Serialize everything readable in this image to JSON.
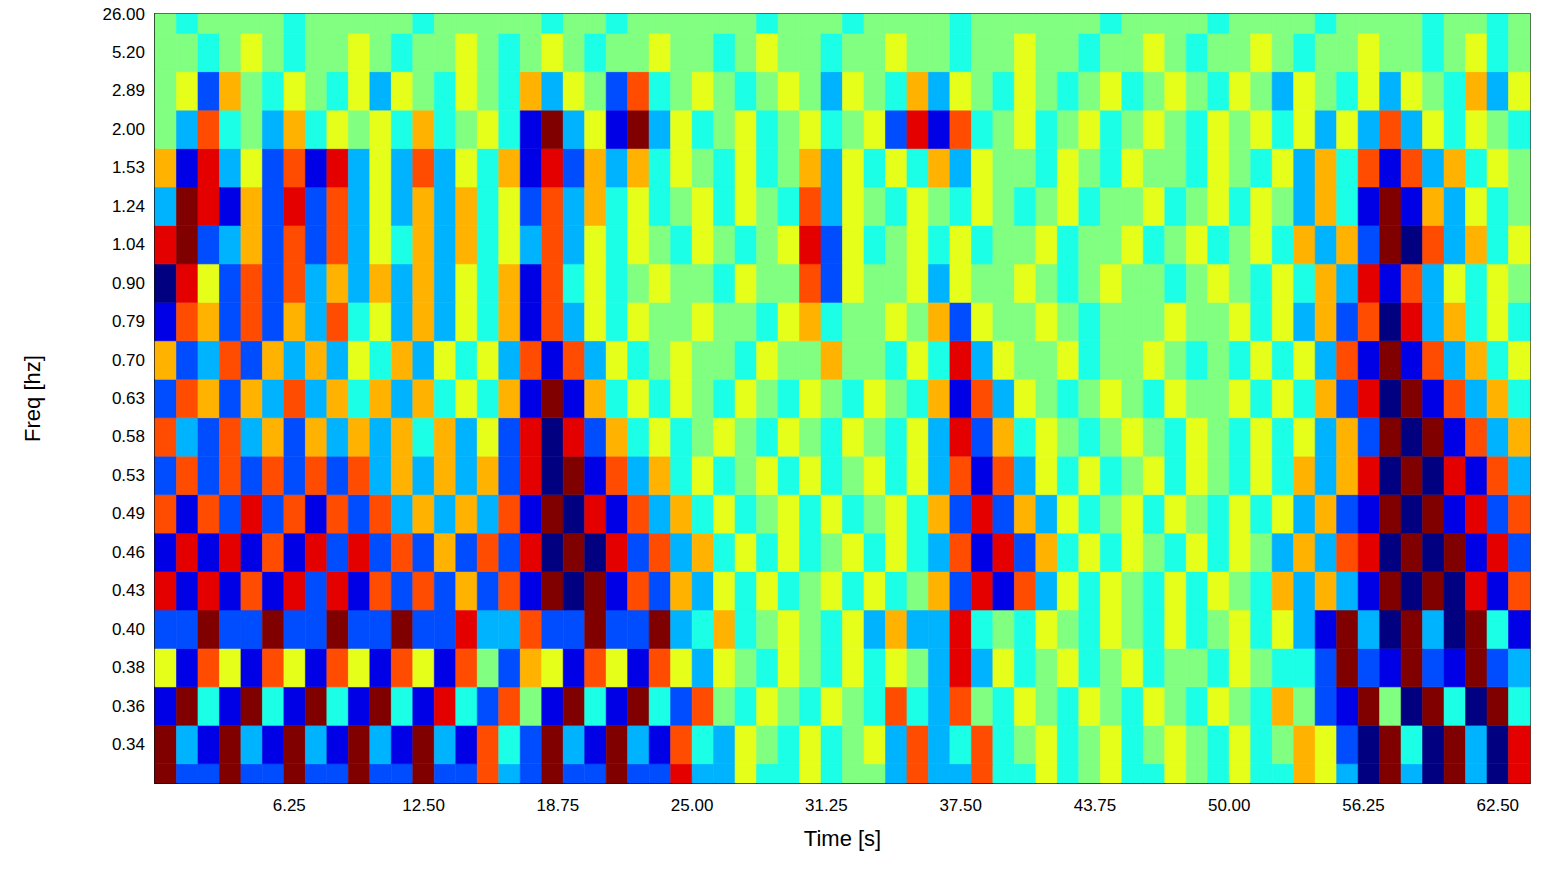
{
  "chart_data": {
    "type": "heatmap",
    "x_label": "Time [s]",
    "y_label": "Freq [hz]",
    "xlim": [
      0,
      64
    ],
    "xticks": [
      6.25,
      {
        "value": 12.5,
        "label": "12.50"
      },
      18.75,
      {
        "value": 25,
        "label": "25.00"
      },
      31.25,
      {
        "value": 37.5,
        "label": "37.50"
      },
      43.75,
      {
        "value": 50,
        "label": "50.00"
      },
      56.25,
      {
        "value": 62.5,
        "label": "62.50"
      }
    ],
    "grid": false,
    "x": [
      0.5,
      1.5,
      2.5,
      3.5,
      4.5,
      5.5,
      6.5,
      7.5,
      8.5,
      9.5,
      10.5,
      11.5,
      12.5,
      13.5,
      14.5,
      15.5,
      16.5,
      17.5,
      18.5,
      19.5,
      20.5,
      21.5,
      22.5,
      23.5,
      24.5,
      25.5,
      26.5,
      27.5,
      28.5,
      29.5,
      30.5,
      31.5,
      32.5,
      33.5,
      34.5,
      35.5,
      36.5,
      37.5,
      38.5,
      39.5,
      40.5,
      41.5,
      42.5,
      43.5,
      44.5,
      45.5,
      46.5,
      47.5,
      48.5,
      49.5,
      50.5,
      51.5,
      52.5,
      53.5,
      54.5,
      55.5,
      56.5,
      57.5,
      58.5,
      59.5,
      60.5,
      61.5,
      62.5,
      63.5
    ],
    "categories": [
      null,
      "0.34",
      "0.36",
      "0.38",
      "0.40",
      "0.43",
      "0.46",
      "0.49",
      "0.53",
      "0.58",
      "0.63",
      "0.70",
      "0.79",
      "0.90",
      "1.04",
      "1.24",
      "1.53",
      "2.00",
      "2.89",
      "5.20",
      "26.00"
    ],
    "color_range": [
      -5,
      5
    ],
    "cells": [
      [
        5,
        -3,
        -3,
        5,
        -3,
        -3,
        5,
        -3,
        -3,
        5,
        -3,
        -3,
        5,
        -3,
        -3,
        3,
        -2,
        -3,
        5,
        -3,
        -3,
        5,
        -3,
        -3,
        4,
        -2,
        -2,
        1,
        -1,
        -1,
        1,
        -1,
        0,
        0,
        -2,
        3,
        -2,
        -2,
        3,
        -1,
        -1,
        1,
        -1,
        0,
        1,
        -1,
        -1,
        1,
        0,
        -1,
        1,
        -1,
        -1,
        2,
        1,
        -2,
        -5,
        5,
        -2,
        -5,
        5,
        -2,
        -5,
        4
      ],
      [
        5,
        -2,
        -4,
        5,
        -2,
        -4,
        5,
        -2,
        -4,
        5,
        -2,
        -4,
        5,
        -2,
        -4,
        3,
        -1,
        -3,
        5,
        -2,
        -4,
        5,
        -2,
        -4,
        3,
        -1,
        -2,
        1,
        0,
        -1,
        1,
        -1,
        0,
        1,
        -2,
        3,
        -2,
        -1,
        3,
        -1,
        0,
        1,
        -1,
        0,
        1,
        -1,
        0,
        1,
        0,
        -1,
        1,
        -1,
        0,
        2,
        1,
        -3,
        -5,
        5,
        -1,
        -5,
        5,
        -2,
        -5,
        4
      ],
      [
        -4,
        5,
        -1,
        -4,
        5,
        -1,
        -4,
        5,
        -1,
        -4,
        5,
        -1,
        -4,
        4,
        -1,
        -3,
        3,
        0,
        -4,
        5,
        -1,
        -4,
        5,
        -1,
        -3,
        3,
        0,
        -1,
        1,
        0,
        -1,
        1,
        0,
        -1,
        3,
        -1,
        -2,
        3,
        0,
        -1,
        1,
        0,
        -1,
        1,
        0,
        -1,
        1,
        0,
        -1,
        1,
        0,
        -1,
        2,
        0,
        -3,
        -4,
        5,
        0,
        -5,
        5,
        -1,
        -5,
        5,
        -1
      ],
      [
        1,
        -4,
        3,
        1,
        -4,
        3,
        1,
        -4,
        3,
        1,
        -4,
        3,
        1,
        -4,
        3,
        0,
        -3,
        2,
        1,
        -4,
        3,
        1,
        -4,
        3,
        1,
        -2,
        1,
        0,
        -1,
        1,
        0,
        -1,
        1,
        -1,
        1,
        0,
        -2,
        4,
        -2,
        1,
        -1,
        0,
        1,
        -1,
        0,
        1,
        -1,
        0,
        0,
        -1,
        1,
        0,
        -1,
        -1,
        -3,
        5,
        -3,
        -4,
        5,
        -3,
        -4,
        5,
        -3,
        -2
      ],
      [
        -3,
        -3,
        5,
        -3,
        -3,
        5,
        -3,
        -3,
        5,
        -3,
        -3,
        5,
        -3,
        -3,
        4,
        -2,
        -2,
        3,
        -3,
        -3,
        5,
        -3,
        -3,
        5,
        -2,
        -1,
        2,
        -1,
        0,
        1,
        0,
        -1,
        1,
        -2,
        2,
        -2,
        -2,
        4,
        -1,
        0,
        -1,
        1,
        0,
        -1,
        1,
        0,
        -1,
        1,
        -1,
        0,
        1,
        -1,
        1,
        -2,
        -4,
        5,
        -2,
        -5,
        5,
        -2,
        -5,
        5,
        -1,
        -4
      ],
      [
        4,
        -4,
        4,
        -4,
        3,
        -4,
        4,
        -3,
        4,
        -4,
        3,
        -3,
        3,
        -3,
        2,
        -3,
        3,
        -4,
        5,
        -5,
        5,
        -4,
        3,
        -3,
        2,
        -2,
        1,
        -1,
        1,
        -1,
        0,
        1,
        -1,
        1,
        -1,
        0,
        2,
        -3,
        4,
        -4,
        3,
        -2,
        1,
        -1,
        1,
        0,
        -1,
        1,
        -1,
        1,
        0,
        -1,
        2,
        -2,
        2,
        -2,
        -4,
        5,
        -5,
        5,
        -5,
        4,
        -4,
        3
      ],
      [
        -4,
        4,
        -4,
        4,
        -4,
        3,
        -4,
        4,
        -3,
        4,
        -3,
        3,
        -3,
        2,
        -3,
        3,
        -3,
        4,
        -5,
        5,
        -5,
        4,
        -3,
        3,
        -2,
        2,
        -1,
        1,
        -1,
        1,
        -1,
        0,
        1,
        -1,
        1,
        -1,
        -2,
        3,
        -4,
        4,
        -3,
        2,
        -1,
        1,
        -1,
        1,
        0,
        -1,
        1,
        -1,
        1,
        0,
        -2,
        2,
        -2,
        3,
        4,
        -5,
        5,
        -5,
        5,
        -4,
        4,
        -3
      ],
      [
        3,
        -4,
        3,
        -3,
        4,
        -3,
        3,
        -4,
        3,
        -3,
        3,
        -2,
        2,
        -2,
        2,
        -2,
        3,
        -4,
        5,
        -5,
        4,
        -4,
        3,
        -2,
        2,
        -1,
        1,
        -1,
        0,
        1,
        -1,
        1,
        -1,
        0,
        1,
        -1,
        2,
        -3,
        4,
        -3,
        2,
        -2,
        1,
        -1,
        0,
        1,
        -1,
        1,
        0,
        -1,
        1,
        -1,
        1,
        -2,
        2,
        -3,
        -4,
        5,
        -5,
        5,
        -4,
        4,
        -3,
        3
      ],
      [
        -3,
        3,
        -3,
        3,
        -3,
        3,
        -3,
        3,
        -3,
        3,
        -2,
        2,
        -2,
        2,
        -2,
        2,
        -3,
        4,
        -5,
        5,
        -4,
        3,
        -2,
        2,
        -1,
        1,
        -1,
        0,
        1,
        -1,
        1,
        -1,
        0,
        1,
        -1,
        1,
        -2,
        3,
        -4,
        3,
        -2,
        1,
        -1,
        1,
        -1,
        0,
        1,
        -1,
        1,
        0,
        -1,
        1,
        -1,
        2,
        -2,
        2,
        4,
        -5,
        5,
        -5,
        4,
        -4,
        3,
        -2
      ],
      [
        3,
        -2,
        -3,
        3,
        -2,
        2,
        -3,
        2,
        -2,
        2,
        -2,
        2,
        -1,
        2,
        -2,
        1,
        -3,
        4,
        -5,
        4,
        -3,
        2,
        -1,
        1,
        -1,
        0,
        1,
        0,
        -1,
        1,
        0,
        -1,
        1,
        0,
        -1,
        1,
        -2,
        4,
        -3,
        2,
        -1,
        1,
        0,
        -1,
        0,
        1,
        0,
        -1,
        1,
        0,
        -1,
        1,
        -1,
        1,
        -2,
        2,
        -3,
        5,
        -5,
        5,
        -4,
        3,
        -2,
        2
      ],
      [
        -3,
        3,
        2,
        -3,
        2,
        -2,
        3,
        -2,
        2,
        -1,
        2,
        -2,
        2,
        -1,
        1,
        -1,
        2,
        -4,
        5,
        -4,
        2,
        -1,
        1,
        -1,
        1,
        0,
        -1,
        1,
        0,
        -1,
        1,
        0,
        -1,
        1,
        0,
        -1,
        2,
        -4,
        3,
        -2,
        1,
        0,
        -1,
        0,
        1,
        0,
        -1,
        1,
        0,
        0,
        1,
        -1,
        1,
        -1,
        2,
        -3,
        4,
        -5,
        5,
        -4,
        3,
        -2,
        2,
        -1
      ],
      [
        2,
        -3,
        -2,
        3,
        -3,
        2,
        -2,
        2,
        -2,
        1,
        -1,
        2,
        -2,
        1,
        -1,
        1,
        -2,
        3,
        -4,
        3,
        -2,
        1,
        -1,
        0,
        1,
        0,
        0,
        -1,
        1,
        0,
        0,
        2,
        0,
        0,
        -1,
        1,
        -1,
        4,
        -2,
        1,
        0,
        0,
        1,
        -1,
        0,
        0,
        1,
        0,
        -1,
        0,
        -1,
        1,
        -1,
        1,
        -2,
        3,
        -4,
        5,
        -4,
        3,
        -2,
        2,
        -1,
        1
      ],
      [
        -4,
        3,
        2,
        -3,
        3,
        -3,
        2,
        -2,
        3,
        -1,
        1,
        -2,
        2,
        -2,
        1,
        -1,
        2,
        -4,
        3,
        -2,
        1,
        -1,
        1,
        0,
        0,
        1,
        0,
        0,
        -1,
        1,
        2,
        -1,
        0,
        0,
        1,
        0,
        2,
        -3,
        1,
        0,
        0,
        1,
        0,
        -1,
        0,
        0,
        0,
        1,
        0,
        0,
        1,
        -1,
        1,
        -2,
        2,
        -3,
        3,
        -5,
        4,
        -2,
        2,
        -1,
        1,
        -1
      ],
      [
        -5,
        4,
        1,
        -3,
        3,
        -3,
        3,
        -2,
        2,
        -2,
        2,
        -2,
        2,
        -2,
        1,
        -1,
        2,
        -4,
        3,
        -1,
        1,
        -1,
        0,
        1,
        0,
        0,
        -1,
        1,
        0,
        0,
        3,
        -3,
        1,
        0,
        0,
        1,
        -2,
        1,
        0,
        0,
        1,
        0,
        -1,
        0,
        1,
        0,
        0,
        -1,
        0,
        1,
        0,
        -1,
        1,
        -1,
        2,
        -2,
        4,
        -4,
        3,
        -2,
        1,
        -1,
        1,
        0
      ],
      [
        4,
        5,
        -3,
        -2,
        2,
        -3,
        3,
        -3,
        3,
        -2,
        1,
        -1,
        2,
        -2,
        2,
        -1,
        1,
        -2,
        3,
        -2,
        1,
        -1,
        1,
        0,
        -1,
        1,
        0,
        -1,
        0,
        1,
        4,
        -3,
        1,
        -1,
        0,
        1,
        -1,
        1,
        -1,
        0,
        0,
        1,
        -1,
        0,
        0,
        1,
        -1,
        0,
        1,
        -1,
        0,
        1,
        -1,
        2,
        -2,
        2,
        -3,
        5,
        -5,
        3,
        -2,
        2,
        -1,
        1
      ],
      [
        -2,
        5,
        4,
        -4,
        2,
        -3,
        4,
        -3,
        3,
        -2,
        1,
        -2,
        2,
        -2,
        2,
        -1,
        1,
        -3,
        3,
        -2,
        2,
        -1,
        1,
        -1,
        0,
        1,
        -1,
        1,
        0,
        -1,
        3,
        -2,
        1,
        0,
        -1,
        1,
        0,
        -1,
        1,
        0,
        -1,
        0,
        1,
        -1,
        0,
        0,
        1,
        -1,
        0,
        1,
        -1,
        1,
        0,
        -2,
        2,
        -1,
        -4,
        5,
        -4,
        2,
        -2,
        1,
        -1,
        0
      ],
      [
        2,
        -4,
        4,
        -2,
        1,
        -3,
        3,
        -4,
        4,
        -2,
        1,
        -2,
        3,
        -2,
        1,
        -1,
        2,
        -4,
        4,
        -3,
        2,
        -2,
        2,
        -1,
        1,
        0,
        -1,
        1,
        -1,
        0,
        2,
        -2,
        1,
        -1,
        1,
        -1,
        2,
        -2,
        1,
        0,
        0,
        -1,
        1,
        0,
        -1,
        1,
        0,
        0,
        -1,
        1,
        0,
        -1,
        1,
        -2,
        2,
        -1,
        3,
        -4,
        3,
        -2,
        2,
        -1,
        1,
        0
      ],
      [
        0,
        -2,
        3,
        -1,
        0,
        -2,
        2,
        -1,
        1,
        0,
        1,
        -1,
        2,
        -1,
        0,
        1,
        -1,
        -4,
        5,
        -2,
        1,
        -4,
        5,
        -2,
        1,
        -1,
        0,
        1,
        -1,
        0,
        1,
        -1,
        0,
        1,
        -3,
        4,
        -4,
        3,
        -1,
        0,
        1,
        -1,
        0,
        1,
        -1,
        0,
        1,
        0,
        -1,
        1,
        0,
        1,
        -1,
        1,
        -2,
        1,
        -2,
        3,
        -2,
        1,
        -1,
        1,
        0,
        -1
      ],
      [
        0,
        1,
        -3,
        2,
        0,
        -1,
        1,
        0,
        -1,
        1,
        -2,
        1,
        0,
        -1,
        1,
        0,
        -1,
        2,
        -2,
        1,
        0,
        -3,
        3,
        -1,
        0,
        1,
        0,
        -1,
        0,
        1,
        0,
        -2,
        1,
        0,
        -1,
        2,
        -2,
        1,
        0,
        -1,
        1,
        0,
        -1,
        0,
        1,
        -1,
        0,
        1,
        0,
        -1,
        1,
        0,
        -2,
        1,
        0,
        -1,
        1,
        -2,
        1,
        0,
        -1,
        2,
        -2,
        1
      ],
      [
        0,
        0,
        -1,
        0,
        1,
        0,
        -1,
        0,
        0,
        1,
        0,
        -1,
        0,
        0,
        1,
        0,
        -1,
        0,
        1,
        0,
        -1,
        0,
        0,
        1,
        0,
        0,
        -1,
        0,
        1,
        0,
        0,
        -1,
        0,
        0,
        1,
        0,
        0,
        -1,
        0,
        0,
        1,
        0,
        0,
        -1,
        0,
        0,
        1,
        0,
        -1,
        0,
        0,
        1,
        0,
        -1,
        0,
        0,
        1,
        0,
        0,
        -1,
        0,
        1,
        -1,
        0
      ],
      [
        0,
        -1,
        0,
        0,
        0,
        0,
        -1,
        0,
        0,
        0,
        0,
        0,
        -1,
        0,
        0,
        0,
        0,
        0,
        -1,
        0,
        0,
        -1,
        0,
        0,
        0,
        0,
        0,
        0,
        -1,
        0,
        0,
        0,
        -1,
        0,
        0,
        0,
        0,
        -1,
        0,
        0,
        0,
        0,
        0,
        0,
        -1,
        0,
        0,
        0,
        0,
        -1,
        0,
        0,
        0,
        0,
        -1,
        0,
        0,
        0,
        0,
        -1,
        0,
        0,
        -1,
        0
      ]
    ]
  }
}
